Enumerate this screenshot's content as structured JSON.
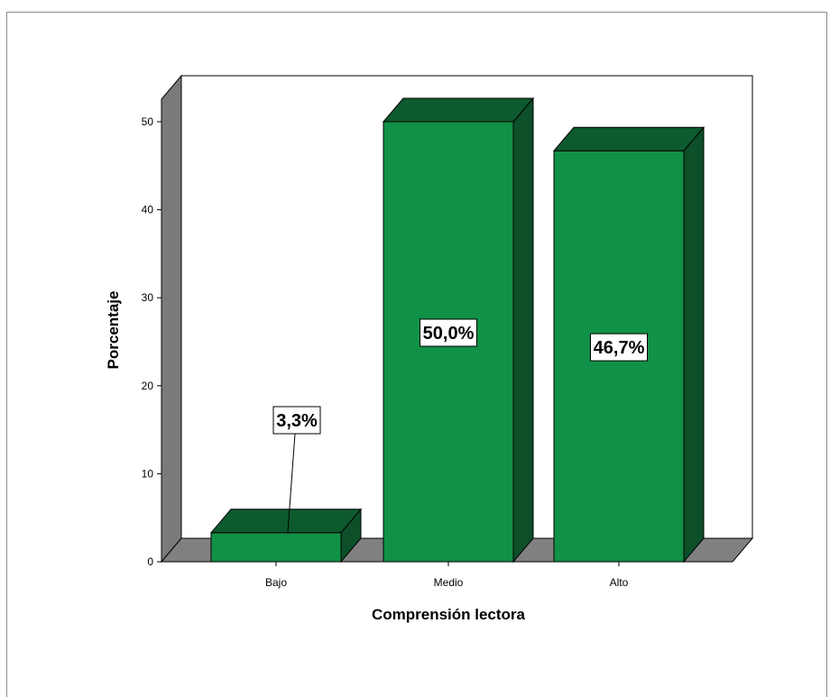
{
  "chart_data": {
    "type": "bar",
    "style": "3d",
    "categories": [
      "Bajo",
      "Medio",
      "Alto"
    ],
    "values": [
      3.3,
      50.0,
      46.7
    ],
    "data_labels": [
      "3,3%",
      "50,0%",
      "46,7%"
    ],
    "xlabel": "Comprensión lectora",
    "ylabel": "Porcentaje",
    "ylim": [
      0,
      50
    ],
    "yticks": [
      0,
      10,
      20,
      30,
      40,
      50
    ],
    "grid": false,
    "colors": {
      "bar_front": "#119147",
      "bar_top": "#0d5a2e",
      "bar_side": "#0c4f28",
      "floor": "#808080",
      "wall": "#ffffff",
      "left_wall": "#7a7a7a"
    }
  }
}
